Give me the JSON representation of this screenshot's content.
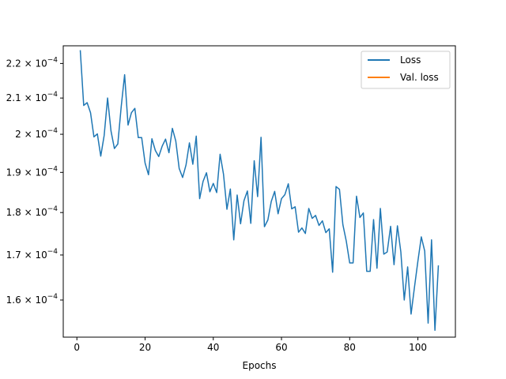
{
  "chart_data": {
    "type": "line",
    "title": "",
    "xlabel": "Epochs",
    "ylabel": "",
    "xlim": [
      -4,
      111
    ],
    "ylim": [
      0.0001522,
      0.0002253
    ],
    "yscale": "log",
    "x_ticks": [
      0,
      20,
      40,
      60,
      80,
      100
    ],
    "x_tick_labels": [
      "0",
      "20",
      "40",
      "60",
      "80",
      "100"
    ],
    "y_ticks": [
      0.00016,
      0.00017,
      0.00018,
      0.00019,
      0.0002,
      0.00021,
      0.00022
    ],
    "y_tick_mantissas": [
      "1.6",
      "1.7",
      "1.8",
      "1.9",
      "2",
      "2.1",
      "2.2"
    ],
    "y_tick_base": "× 10",
    "y_tick_exponent": "−4",
    "grid": false,
    "legend_position": "upper right",
    "series": [
      {
        "name": "Loss",
        "color": "#1f77b4",
        "x": [
          1,
          2,
          3,
          4,
          5,
          6,
          7,
          8,
          9,
          10,
          11,
          12,
          13,
          14,
          15,
          16,
          17,
          18,
          19,
          20,
          21,
          22,
          23,
          24,
          25,
          26,
          27,
          28,
          29,
          30,
          31,
          32,
          33,
          34,
          35,
          36,
          37,
          38,
          39,
          40,
          41,
          42,
          43,
          44,
          45,
          46,
          47,
          48,
          49,
          50,
          51,
          52,
          53,
          54,
          55,
          56,
          57,
          58,
          59,
          60,
          61,
          62,
          63,
          64,
          65,
          66,
          67,
          68,
          69,
          70,
          71,
          72,
          73,
          74,
          75,
          76,
          77,
          78,
          79,
          80,
          81,
          82,
          83,
          84,
          85,
          86,
          87,
          88,
          89,
          90,
          91,
          92,
          93,
          94,
          95,
          96,
          97,
          98,
          99,
          100,
          101,
          102,
          103,
          104,
          105,
          106
        ],
        "y": [
          0.0002238,
          0.0002079,
          0.0002087,
          0.0002059,
          0.0001993,
          0.0002001,
          0.0001942,
          0.0001997,
          0.00021,
          0.0002009,
          0.0001962,
          0.0001974,
          0.0002076,
          0.0002167,
          0.0002025,
          0.0002059,
          0.0002071,
          0.0001991,
          0.0001991,
          0.0001924,
          0.0001894,
          0.0001988,
          0.0001957,
          0.0001941,
          0.0001968,
          0.0001987,
          0.0001951,
          0.0002016,
          0.0001982,
          0.000191,
          0.0001887,
          0.0001919,
          0.0001977,
          0.0001921,
          0.0001995,
          0.0001834,
          0.0001877,
          0.0001899,
          0.0001851,
          0.0001872,
          0.0001849,
          0.0001947,
          0.0001895,
          0.0001808,
          0.0001858,
          0.0001735,
          0.0001843,
          0.0001773,
          0.0001829,
          0.0001853,
          0.0001774,
          0.000193,
          0.0001839,
          0.0001992,
          0.0001766,
          0.0001782,
          0.0001827,
          0.0001852,
          0.0001797,
          0.0001834,
          0.0001844,
          0.0001871,
          0.0001809,
          0.0001814,
          0.0001753,
          0.0001763,
          0.000175,
          0.000181,
          0.0001786,
          0.0001793,
          0.0001769,
          0.000178,
          0.0001752,
          0.0001761,
          0.0001661,
          0.0001864,
          0.0001857,
          0.0001771,
          0.0001732,
          0.0001682,
          0.0001682,
          0.000184,
          0.0001788,
          0.0001799,
          0.0001663,
          0.0001663,
          0.0001783,
          0.000167,
          0.000181,
          0.0001702,
          0.0001707,
          0.0001767,
          0.0001678,
          0.0001768,
          0.0001707,
          0.00016,
          0.0001673,
          0.000157,
          0.0001628,
          0.0001686,
          0.0001742,
          0.0001709,
          0.0001551,
          0.0001735,
          0.0001536,
          0.0001675
        ]
      },
      {
        "name": "Val. loss",
        "color": "#ff7f0e",
        "x": [],
        "y": []
      }
    ]
  }
}
